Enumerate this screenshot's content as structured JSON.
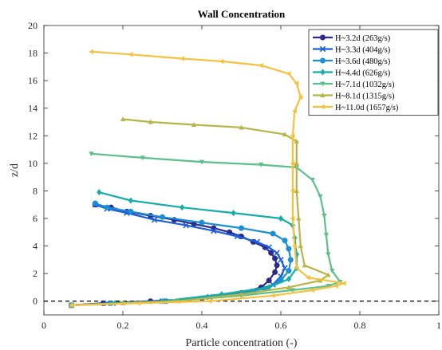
{
  "chart_data": {
    "type": "line",
    "title": "Wall Concentration",
    "xlabel": "Particle concentration (-)",
    "ylabel": "z/d",
    "xlim": [
      0,
      1
    ],
    "ylim": [
      -1,
      20
    ],
    "xticks": [
      "0",
      "0.2",
      "0.4",
      "0.6",
      "0.8",
      "1"
    ],
    "yticks": [
      "0",
      "2",
      "4",
      "6",
      "8",
      "10",
      "12",
      "14",
      "16",
      "18",
      "20"
    ],
    "grid": false,
    "legend_position": "top-right",
    "reference_line": {
      "y": 0,
      "style": "dashed",
      "color": "#000000"
    },
    "series": [
      {
        "name": "H~3.2d (263g/s)",
        "color": "#2e2a8c",
        "marker": "circle",
        "points": [
          [
            0.07,
            -0.3
          ],
          [
            0.15,
            -0.15
          ],
          [
            0.27,
            0.0
          ],
          [
            0.4,
            0.2
          ],
          [
            0.5,
            0.6
          ],
          [
            0.55,
            1.0
          ],
          [
            0.57,
            1.5
          ],
          [
            0.585,
            2.1
          ],
          [
            0.59,
            2.6
          ],
          [
            0.585,
            3.1
          ],
          [
            0.575,
            3.5
          ],
          [
            0.56,
            3.9
          ],
          [
            0.53,
            4.3
          ],
          [
            0.5,
            4.7
          ],
          [
            0.47,
            5.0
          ],
          [
            0.43,
            5.3
          ],
          [
            0.38,
            5.6
          ],
          [
            0.33,
            5.9
          ],
          [
            0.27,
            6.2
          ],
          [
            0.21,
            6.5
          ],
          [
            0.17,
            6.8
          ],
          [
            0.13,
            7.0
          ]
        ]
      },
      {
        "name": "H~3.3d (404g/s)",
        "color": "#1c5fde",
        "marker": "x",
        "points": [
          [
            0.07,
            -0.3
          ],
          [
            0.16,
            -0.15
          ],
          [
            0.3,
            0.0
          ],
          [
            0.42,
            0.3
          ],
          [
            0.53,
            0.7
          ],
          [
            0.58,
            1.2
          ],
          [
            0.6,
            1.8
          ],
          [
            0.61,
            2.4
          ],
          [
            0.6,
            3.0
          ],
          [
            0.59,
            3.5
          ],
          [
            0.57,
            3.9
          ],
          [
            0.54,
            4.3
          ],
          [
            0.49,
            4.7
          ],
          [
            0.43,
            5.1
          ],
          [
            0.36,
            5.5
          ],
          [
            0.28,
            5.9
          ],
          [
            0.21,
            6.4
          ],
          [
            0.16,
            6.7
          ],
          [
            0.13,
            7.0
          ]
        ]
      },
      {
        "name": "H~3.6d (480g/s)",
        "color": "#1a8fd4",
        "marker": "circle",
        "points": [
          [
            0.07,
            -0.3
          ],
          [
            0.17,
            -0.15
          ],
          [
            0.31,
            0.0
          ],
          [
            0.45,
            0.4
          ],
          [
            0.56,
            0.9
          ],
          [
            0.6,
            1.5
          ],
          [
            0.62,
            2.2
          ],
          [
            0.625,
            3.0
          ],
          [
            0.62,
            3.8
          ],
          [
            0.61,
            4.4
          ],
          [
            0.58,
            4.9
          ],
          [
            0.5,
            5.3
          ],
          [
            0.4,
            5.7
          ],
          [
            0.3,
            6.1
          ],
          [
            0.22,
            6.5
          ],
          [
            0.16,
            6.8
          ],
          [
            0.13,
            7.1
          ]
        ]
      },
      {
        "name": "H~4.4d (626g/s)",
        "color": "#14aeaa",
        "marker": "diamond",
        "points": [
          [
            0.07,
            -0.3
          ],
          [
            0.18,
            -0.15
          ],
          [
            0.3,
            0.0
          ],
          [
            0.45,
            0.5
          ],
          [
            0.57,
            1.0
          ],
          [
            0.62,
            1.6
          ],
          [
            0.64,
            2.4
          ],
          [
            0.64,
            3.4
          ],
          [
            0.635,
            4.6
          ],
          [
            0.63,
            5.5
          ],
          [
            0.6,
            6.0
          ],
          [
            0.48,
            6.4
          ],
          [
            0.35,
            6.8
          ],
          [
            0.22,
            7.3
          ],
          [
            0.14,
            7.9
          ]
        ]
      },
      {
        "name": "H~7.1d (1032g/s)",
        "color": "#5cc08a",
        "marker": "triangle-down",
        "points": [
          [
            0.07,
            -0.3
          ],
          [
            0.2,
            -0.15
          ],
          [
            0.33,
            0.0
          ],
          [
            0.5,
            0.4
          ],
          [
            0.63,
            0.8
          ],
          [
            0.72,
            1.1
          ],
          [
            0.75,
            1.4
          ],
          [
            0.73,
            2.2
          ],
          [
            0.72,
            3.4
          ],
          [
            0.715,
            4.8
          ],
          [
            0.71,
            6.2
          ],
          [
            0.7,
            7.6
          ],
          [
            0.68,
            8.8
          ],
          [
            0.64,
            9.7
          ],
          [
            0.55,
            9.9
          ],
          [
            0.4,
            10.1
          ],
          [
            0.25,
            10.4
          ],
          [
            0.12,
            10.7
          ]
        ]
      },
      {
        "name": "H~8.1d (1315g/s)",
        "color": "#b7b545",
        "marker": "triangle-up",
        "points": [
          [
            0.07,
            -0.3
          ],
          [
            0.2,
            -0.15
          ],
          [
            0.34,
            0.0
          ],
          [
            0.5,
            0.5
          ],
          [
            0.62,
            1.0
          ],
          [
            0.7,
            1.5
          ],
          [
            0.72,
            1.9
          ],
          [
            0.66,
            2.6
          ],
          [
            0.65,
            4.0
          ],
          [
            0.645,
            6.0
          ],
          [
            0.64,
            8.0
          ],
          [
            0.64,
            10.0
          ],
          [
            0.64,
            11.6
          ],
          [
            0.61,
            12.1
          ],
          [
            0.5,
            12.6
          ],
          [
            0.38,
            12.8
          ],
          [
            0.27,
            13.0
          ],
          [
            0.2,
            13.2
          ]
        ]
      },
      {
        "name": "H~11.0d (1657g/s)",
        "color": "#f7c13d",
        "marker": "triangle-left",
        "points": [
          [
            0.07,
            -0.3
          ],
          [
            0.24,
            -0.15
          ],
          [
            0.42,
            0.0
          ],
          [
            0.58,
            0.4
          ],
          [
            0.68,
            0.8
          ],
          [
            0.74,
            1.1
          ],
          [
            0.76,
            1.3
          ],
          [
            0.67,
            1.7
          ],
          [
            0.64,
            2.4
          ],
          [
            0.635,
            4.0
          ],
          [
            0.63,
            6.0
          ],
          [
            0.63,
            8.0
          ],
          [
            0.63,
            10.0
          ],
          [
            0.63,
            12.0
          ],
          [
            0.635,
            13.8
          ],
          [
            0.65,
            14.8
          ],
          [
            0.64,
            15.8
          ],
          [
            0.62,
            16.5
          ],
          [
            0.55,
            17.1
          ],
          [
            0.45,
            17.4
          ],
          [
            0.35,
            17.6
          ],
          [
            0.22,
            17.9
          ],
          [
            0.12,
            18.1
          ]
        ]
      }
    ]
  }
}
